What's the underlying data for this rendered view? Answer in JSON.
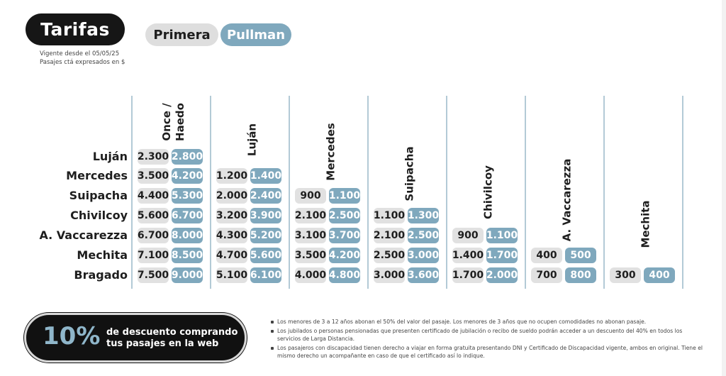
{
  "header": {
    "title": "Tarifas",
    "tabs": [
      {
        "label": "Primera"
      },
      {
        "label": "Pullman"
      }
    ],
    "vigencia": "Vigente desde el 05/05/25",
    "nota_precios": "Pasajes ctá expresados en $"
  },
  "table": {
    "columns": [
      "Once / Haedo",
      "Luján",
      "Mercedes",
      "Suipacha",
      "Chivilcoy",
      "A. Vaccarezza",
      "Mechita"
    ],
    "rows": [
      {
        "label": "Luján",
        "prices": [
          [
            "2.300",
            "2.800"
          ]
        ]
      },
      {
        "label": "Mercedes",
        "prices": [
          [
            "3.500",
            "4.200"
          ],
          [
            "1.200",
            "1.400"
          ]
        ]
      },
      {
        "label": "Suipacha",
        "prices": [
          [
            "4.400",
            "5.300"
          ],
          [
            "2.000",
            "2.400"
          ],
          [
            "900",
            "1.100"
          ]
        ]
      },
      {
        "label": "Chivilcoy",
        "prices": [
          [
            "5.600",
            "6.700"
          ],
          [
            "3.200",
            "3.900"
          ],
          [
            "2.100",
            "2.500"
          ],
          [
            "1.100",
            "1.300"
          ]
        ]
      },
      {
        "label": "A. Vaccarezza",
        "prices": [
          [
            "6.700",
            "8.000"
          ],
          [
            "4.300",
            "5.200"
          ],
          [
            "3.100",
            "3.700"
          ],
          [
            "2.100",
            "2.500"
          ],
          [
            "900",
            "1.100"
          ]
        ]
      },
      {
        "label": "Mechita",
        "prices": [
          [
            "7.100",
            "8.500"
          ],
          [
            "4.700",
            "5.600"
          ],
          [
            "3.500",
            "4.200"
          ],
          [
            "2.500",
            "3.000"
          ],
          [
            "1.400",
            "1.700"
          ],
          [
            "400",
            "500"
          ]
        ]
      },
      {
        "label": "Bragado",
        "prices": [
          [
            "7.500",
            "9.000"
          ],
          [
            "5.100",
            "6.100"
          ],
          [
            "4.000",
            "4.800"
          ],
          [
            "3.000",
            "3.600"
          ],
          [
            "1.700",
            "2.000"
          ],
          [
            "700",
            "800"
          ],
          [
            "300",
            "400"
          ]
        ]
      }
    ]
  },
  "promo": {
    "percent": "10%",
    "line1": "de descuento comprando",
    "line2": "tus pasajes en la web"
  },
  "notes": [
    "Los menores de 3 a 12 años abonan el 50% del valor del pasaje. Los menores de 3 años que no ocupen comodidades no abonan pasaje.",
    "Los jubilados o personas pensionadas que presenten certificado de jubilación o recibo de sueldo podrán acceder a un descuento del 40% en todos los servicios de Larga Distancia.",
    "Los pasajeros con discapacidad tienen derecho a viajar en forma gratuita presentando DNI y Certificado de Discapacidad vigente, ambos en original. Tiene el mismo derecho un acompañante en caso de que el certificado así lo indique."
  ],
  "colors": {
    "primera": "#e1e1e1",
    "pullman": "#7fa8bd",
    "dark": "#161616"
  }
}
